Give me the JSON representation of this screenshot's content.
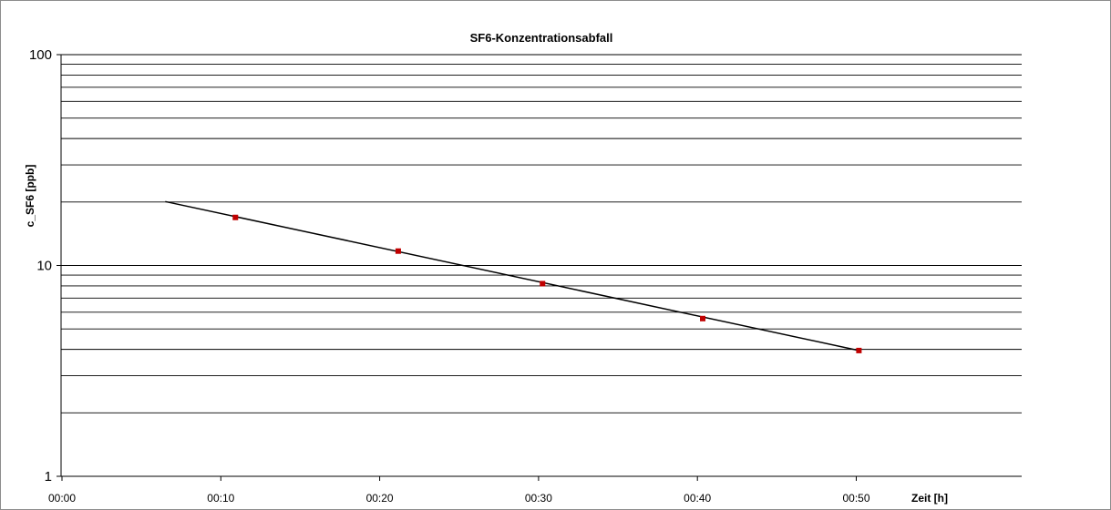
{
  "chart_data": {
    "type": "scatter",
    "title": "SF6-Konzentrationsabfall",
    "xlabel": "Zeit [h]",
    "ylabel": "c_SF6 [ppb]",
    "x_scale": "time",
    "y_scale": "log",
    "xlim": [
      "00:00",
      "01:00"
    ],
    "ylim": [
      1,
      100
    ],
    "x_ticks": [
      "00:00",
      "00:10",
      "00:20",
      "00:30",
      "00:40",
      "00:50"
    ],
    "y_ticks": [
      "1",
      "10",
      "100"
    ],
    "grid": "horizontal minor and major gridlines on y axis",
    "series": [
      {
        "marker": "square",
        "color": "#c00000",
        "points": [
          {
            "x": "00:10:55",
            "y": 16.9
          },
          {
            "x": "00:21:10",
            "y": 11.7
          },
          {
            "x": "00:30:15",
            "y": 8.2
          },
          {
            "x": "00:40:20",
            "y": 5.6
          },
          {
            "x": "00:50:10",
            "y": 3.95
          }
        ]
      }
    ],
    "trendline": {
      "color": "#000000",
      "points": [
        {
          "x": "00:06:30",
          "y": 20.1
        },
        {
          "x": "00:50:10",
          "y": 3.95
        }
      ]
    }
  }
}
